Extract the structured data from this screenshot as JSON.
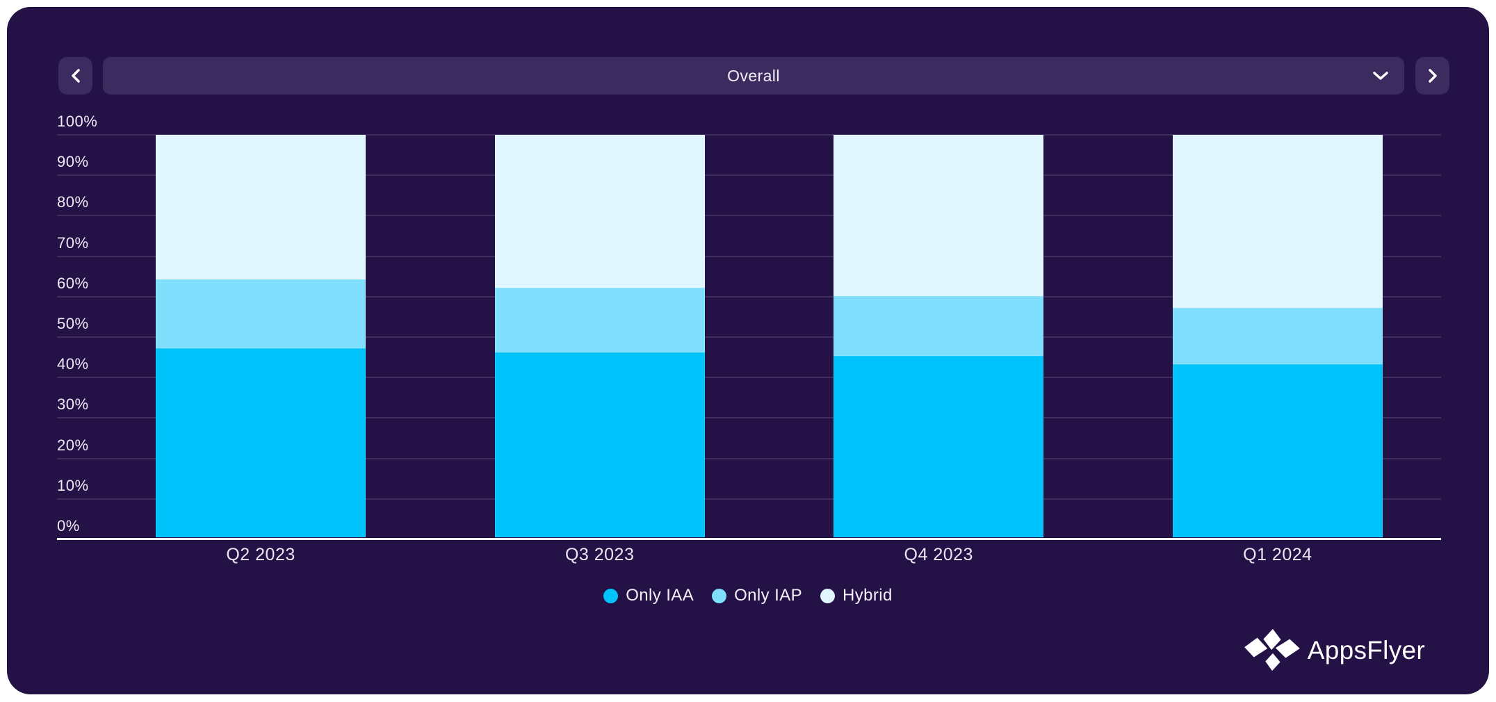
{
  "toolbar": {
    "dropdown": {
      "selected": "Overall"
    },
    "icons": {
      "prev": "chevron-left-icon",
      "next": "chevron-right-icon",
      "dropdown_caret": "chevron-down-icon"
    }
  },
  "brand": {
    "name": "AppsFlyer",
    "icon": "appsflyer-kite-icon"
  },
  "colors": {
    "page_bg": "#ffffff",
    "card_bg": "#241146",
    "control_bg": "#3b2b5e",
    "axis_line": "#ffffff",
    "gridline": "rgba(205,195,235,0.16)",
    "text": "#f2effa"
  },
  "chart_data": {
    "type": "bar",
    "stacked": true,
    "percent": true,
    "title": "",
    "xlabel": "",
    "ylabel": "",
    "categories": [
      "Q2 2023",
      "Q3 2023",
      "Q4 2023",
      "Q1 2024"
    ],
    "series": [
      {
        "name": "Only IAA",
        "color": "#00c3fb",
        "values": [
          47,
          46,
          45,
          43
        ]
      },
      {
        "name": "Only IAP",
        "color": "#7fdffd",
        "values": [
          17,
          16,
          15,
          14
        ]
      },
      {
        "name": "Hybrid",
        "color": "#e0f5fd",
        "values": [
          36,
          38,
          40,
          43
        ]
      }
    ],
    "ylim": [
      0,
      100
    ],
    "yticks": [
      0,
      10,
      20,
      30,
      40,
      50,
      60,
      70,
      80,
      90,
      100
    ],
    "ytick_format": "{v}%",
    "grid": true,
    "legend_position": "bottom-center"
  }
}
